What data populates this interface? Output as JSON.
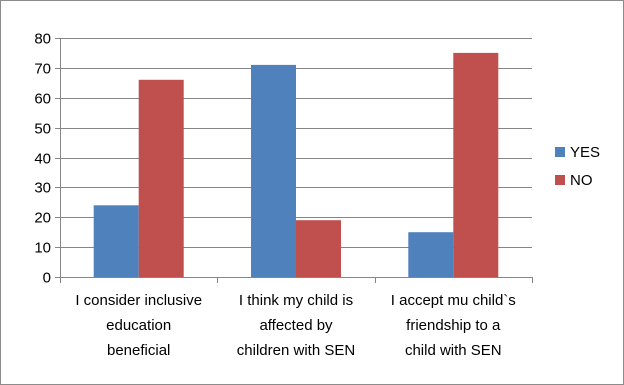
{
  "chart_data": {
    "type": "bar",
    "title": "",
    "xlabel": "",
    "ylabel": "",
    "categories": [
      [
        "I consider inclusive",
        "education",
        "beneficial"
      ],
      [
        "I think my child is",
        "affected by",
        "children with SEN"
      ],
      [
        "I accept mu child`s",
        "friendship to a",
        "child with SEN"
      ]
    ],
    "series": [
      {
        "name": "YES",
        "color": "#4F81BD",
        "values": [
          24,
          71,
          15
        ]
      },
      {
        "name": "NO",
        "color": "#C0504D",
        "values": [
          66,
          19,
          75
        ]
      }
    ],
    "ylim": [
      0,
      80
    ],
    "yticks": [
      "0",
      "10",
      "20",
      "30",
      "40",
      "50",
      "60",
      "70",
      "80"
    ],
    "grid": true,
    "legend": "right"
  }
}
